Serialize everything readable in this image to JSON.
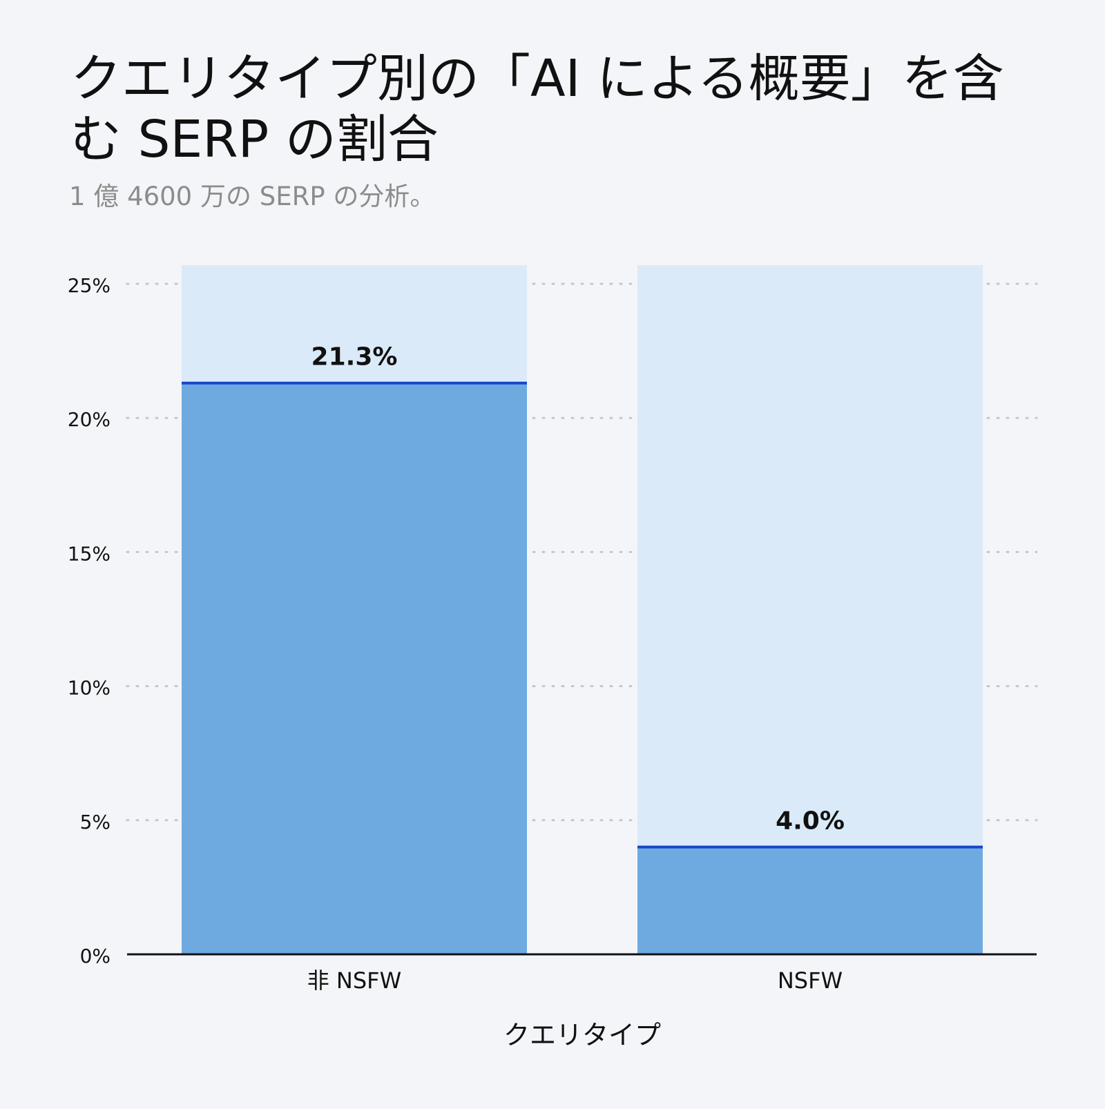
{
  "header": {
    "title": "クエリタイプ別の「AI による概要」を含む SERP の割合",
    "subtitle": "1 億 4600 万の SERP の分析。"
  },
  "chart_data": {
    "type": "bar",
    "categories": [
      "非 NSFW",
      "NSFW"
    ],
    "values": [
      21.3,
      4.0
    ],
    "data_labels": [
      "21.3%",
      "4.0%"
    ],
    "xlabel": "クエリタイプ",
    "ylabel": "",
    "ylim": [
      0,
      25
    ],
    "y_ticks": [
      0,
      5,
      10,
      15,
      20,
      25
    ],
    "y_tick_labels": [
      "0%",
      "5%",
      "10%",
      "15%",
      "20%",
      "25%"
    ],
    "grid": true,
    "grid_style": "dotted",
    "legend": "none",
    "colors": {
      "bar_fill": "#6eaae0",
      "bar_background": "#dbeaf9",
      "bar_top_line": "#1845c9",
      "gridline": "#c4c6cc",
      "axis": "#111111",
      "tick_label": "#111111",
      "subtitle": "#8c8c8c",
      "background": "#f4f5f8"
    }
  }
}
